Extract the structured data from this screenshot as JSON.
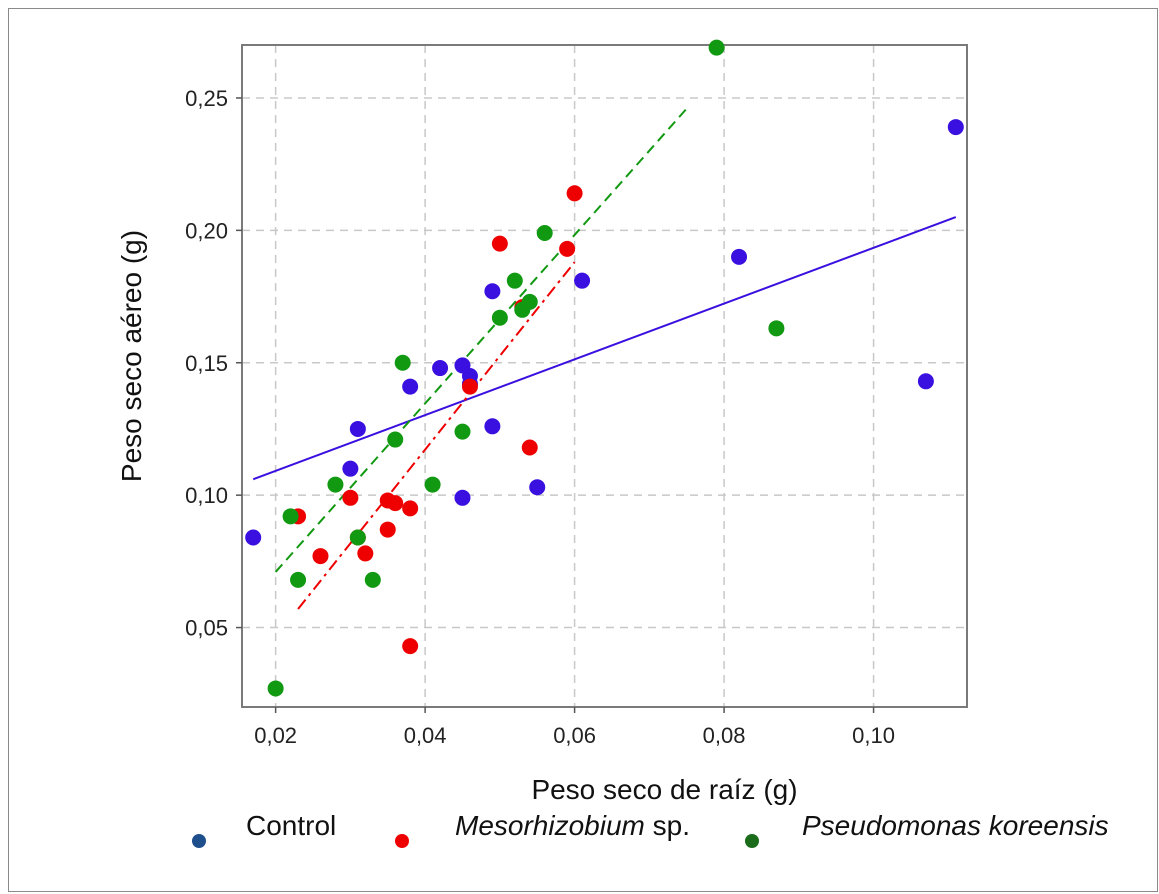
{
  "chart_data": {
    "type": "scatter",
    "xlabel": "Peso seco de raíz (g)",
    "ylabel": "Peso seco aéreo (g)",
    "xlim": [
      0.0155,
      0.1125
    ],
    "ylim": [
      0.02,
      0.27
    ],
    "xticks": [
      0.02,
      0.04,
      0.06,
      0.08,
      0.1
    ],
    "yticks": [
      0.05,
      0.1,
      0.15,
      0.2,
      0.25
    ],
    "xtick_labels": [
      "0,02",
      "0,04",
      "0,06",
      "0,08",
      "0,10"
    ],
    "ytick_labels": [
      "0,05",
      "0,10",
      "0,15",
      "0,20",
      "0,25"
    ],
    "grid": true,
    "legend_position": "bottom",
    "series": [
      {
        "name": "Control",
        "legend_name": "Control",
        "legend_suffix": "",
        "legend_italic": false,
        "color": "#3a10e0",
        "legend_color": "#1f4e8c",
        "points": [
          [
            0.017,
            0.084
          ],
          [
            0.03,
            0.11
          ],
          [
            0.031,
            0.125
          ],
          [
            0.038,
            0.141
          ],
          [
            0.042,
            0.148
          ],
          [
            0.045,
            0.149
          ],
          [
            0.046,
            0.145
          ],
          [
            0.046,
            0.142
          ],
          [
            0.045,
            0.099
          ],
          [
            0.049,
            0.126
          ],
          [
            0.049,
            0.177
          ],
          [
            0.055,
            0.103
          ],
          [
            0.061,
            0.181
          ],
          [
            0.082,
            0.19
          ],
          [
            0.107,
            0.143
          ],
          [
            0.111,
            0.239
          ]
        ],
        "fit": {
          "x": [
            0.017,
            0.111
          ],
          "y": [
            0.106,
            0.205
          ],
          "style": "solid"
        }
      },
      {
        "name": "Mesorhizobium sp.",
        "legend_name": "Mesorhizobium",
        "legend_suffix": " sp.",
        "legend_italic": true,
        "color": "#ee0000",
        "legend_color": "#ee0000",
        "points": [
          [
            0.023,
            0.092
          ],
          [
            0.026,
            0.077
          ],
          [
            0.03,
            0.099
          ],
          [
            0.031,
            0.084
          ],
          [
            0.032,
            0.078
          ],
          [
            0.035,
            0.098
          ],
          [
            0.035,
            0.087
          ],
          [
            0.036,
            0.097
          ],
          [
            0.038,
            0.095
          ],
          [
            0.038,
            0.043
          ],
          [
            0.046,
            0.141
          ],
          [
            0.05,
            0.195
          ],
          [
            0.053,
            0.171
          ],
          [
            0.054,
            0.118
          ],
          [
            0.059,
            0.193
          ],
          [
            0.06,
            0.214
          ]
        ],
        "fit": {
          "x": [
            0.023,
            0.06
          ],
          "y": [
            0.057,
            0.188
          ],
          "style": "dashdot"
        }
      },
      {
        "name": "Pseudomonas koreensis",
        "legend_name": "Pseudomonas koreensis",
        "legend_suffix": "",
        "legend_italic": true,
        "color": "#119911",
        "legend_color": "#1a6b1a",
        "points": [
          [
            0.02,
            0.027
          ],
          [
            0.022,
            0.092
          ],
          [
            0.023,
            0.068
          ],
          [
            0.028,
            0.104
          ],
          [
            0.031,
            0.084
          ],
          [
            0.033,
            0.068
          ],
          [
            0.036,
            0.121
          ],
          [
            0.037,
            0.15
          ],
          [
            0.041,
            0.104
          ],
          [
            0.045,
            0.124
          ],
          [
            0.05,
            0.167
          ],
          [
            0.052,
            0.181
          ],
          [
            0.053,
            0.17
          ],
          [
            0.054,
            0.173
          ],
          [
            0.056,
            0.199
          ],
          [
            0.079,
            0.269
          ],
          [
            0.087,
            0.163
          ]
        ],
        "fit": {
          "x": [
            0.02,
            0.075
          ],
          "y": [
            0.071,
            0.246
          ],
          "style": "dashed"
        }
      }
    ]
  }
}
